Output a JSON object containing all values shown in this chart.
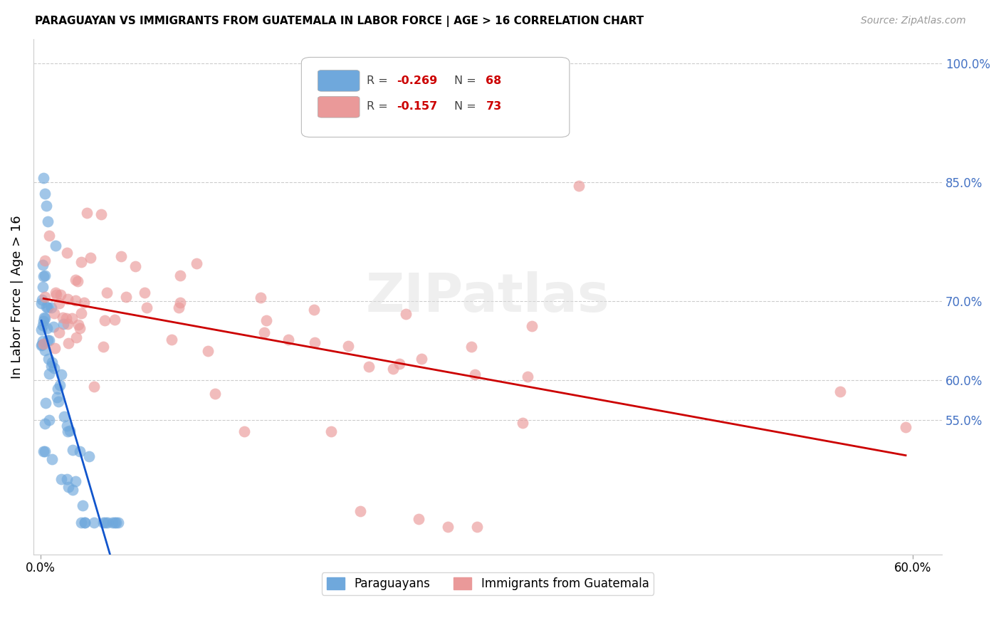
{
  "title": "PARAGUAYAN VS IMMIGRANTS FROM GUATEMALA IN LABOR FORCE | AGE > 16 CORRELATION CHART",
  "source": "Source: ZipAtlas.com",
  "ylabel": "In Labor Force | Age > 16",
  "right_ytick_vals": [
    0.6,
    0.55,
    0.7,
    0.85,
    1.0
  ],
  "right_ytick_labels": [
    "60.0%",
    "55.0%",
    "70.0%",
    "85.0%",
    "100.0%"
  ],
  "legend_blue_R": "-0.269",
  "legend_blue_N": "68",
  "legend_pink_R": "-0.157",
  "legend_pink_N": "73",
  "blue_color": "#6fa8dc",
  "pink_color": "#ea9999",
  "blue_line_color": "#1155cc",
  "pink_line_color": "#cc0000",
  "dashed_line_color": "#aaaaaa",
  "background_color": "#ffffff",
  "watermark": "ZIPatlas",
  "n_blue": 68,
  "n_pink": 73
}
